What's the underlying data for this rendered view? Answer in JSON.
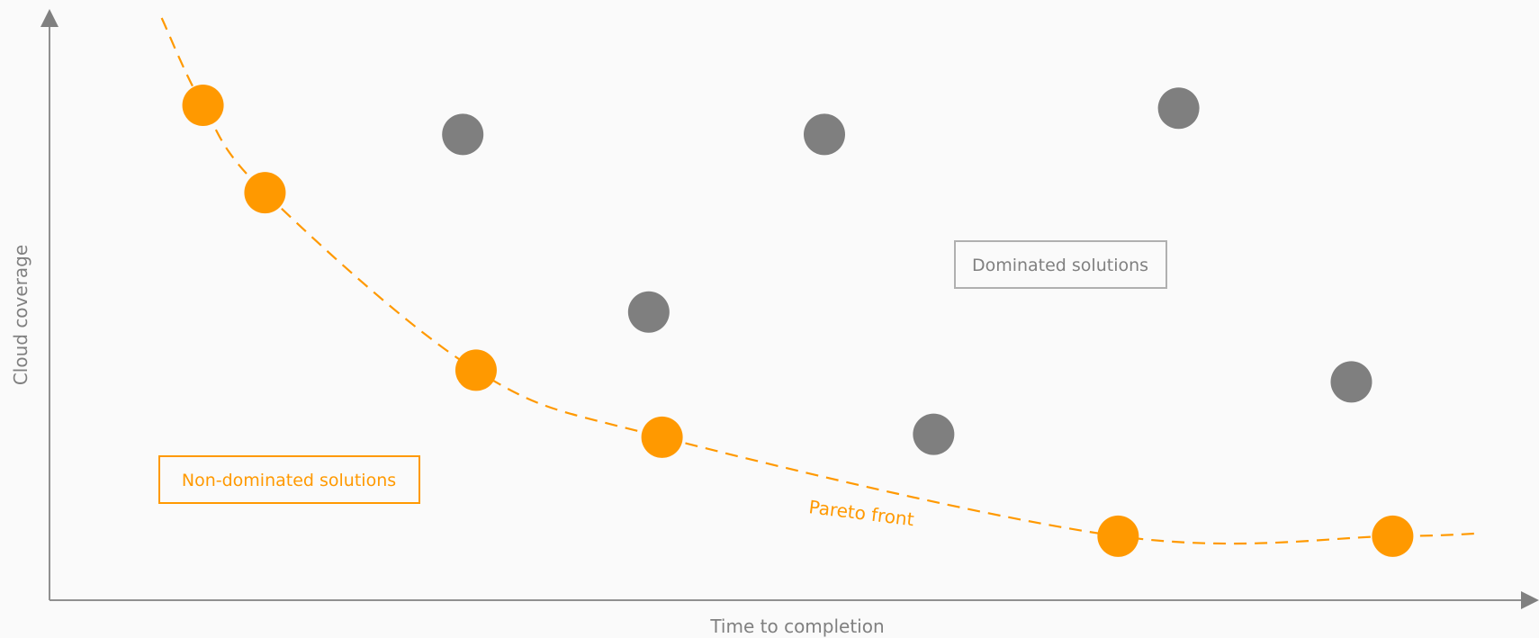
{
  "chart_data": {
    "type": "scatter",
    "title": "",
    "xlabel": "Time to completion",
    "ylabel": "Cloud coverage",
    "grid": false,
    "xlim": [
      0,
      100
    ],
    "ylim": [
      0,
      100
    ],
    "colors": {
      "non_dominated": "#ff9900",
      "dominated": "#7f7f7f",
      "axis": "#909090",
      "dominated_box": "#b0b0b0"
    },
    "series": [
      {
        "name": "Non-dominated solutions",
        "points": [
          {
            "x": 10.4,
            "y": 85
          },
          {
            "x": 14.6,
            "y": 70
          },
          {
            "x": 28.9,
            "y": 39.5
          },
          {
            "x": 41.5,
            "y": 28
          },
          {
            "x": 72.4,
            "y": 11
          },
          {
            "x": 91.0,
            "y": 11
          }
        ]
      },
      {
        "name": "Dominated solutions",
        "points": [
          {
            "x": 28.0,
            "y": 80
          },
          {
            "x": 52.5,
            "y": 80
          },
          {
            "x": 40.6,
            "y": 49.5
          },
          {
            "x": 59.9,
            "y": 28.5
          },
          {
            "x": 76.5,
            "y": 84.5
          },
          {
            "x": 88.2,
            "y": 37.5
          }
        ]
      }
    ],
    "pareto_front": {
      "label": "Pareto front",
      "curve": [
        {
          "x": 7.6,
          "y": 100
        },
        {
          "x": 10.4,
          "y": 85
        },
        {
          "x": 14.6,
          "y": 70
        },
        {
          "x": 28.9,
          "y": 39.5
        },
        {
          "x": 41.5,
          "y": 28
        },
        {
          "x": 72.4,
          "y": 11
        },
        {
          "x": 91.0,
          "y": 11
        },
        {
          "x": 97.0,
          "y": 11.5
        }
      ]
    },
    "annotations": {
      "non_dominated_label": "Non-dominated solutions",
      "dominated_label": "Dominated solutions"
    }
  }
}
